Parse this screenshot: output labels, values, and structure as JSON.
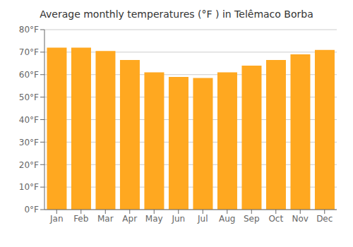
{
  "chart_data": {
    "type": "bar",
    "title": "Average monthly temperatures (°F ) in Telêmaco Borba",
    "categories": [
      "Jan",
      "Feb",
      "Mar",
      "Apr",
      "May",
      "Jun",
      "Jul",
      "Aug",
      "Sep",
      "Oct",
      "Nov",
      "Dec"
    ],
    "values": [
      72,
      72,
      70.5,
      66.5,
      61,
      59,
      58.5,
      61,
      64,
      66.5,
      69,
      71
    ],
    "color": "#FFA820",
    "ylim": [
      0,
      80
    ],
    "yticks": [
      {
        "value": 0,
        "label": "0°F"
      },
      {
        "value": 10,
        "label": "10°F"
      },
      {
        "value": 20,
        "label": "20°F"
      },
      {
        "value": 30,
        "label": "30°F"
      },
      {
        "value": 40,
        "label": "40°F"
      },
      {
        "value": 50,
        "label": "50°F"
      },
      {
        "value": 60,
        "label": "60°F"
      },
      {
        "value": 70,
        "label": "70°F"
      },
      {
        "value": 80,
        "label": "80°F"
      }
    ],
    "grid": true
  }
}
